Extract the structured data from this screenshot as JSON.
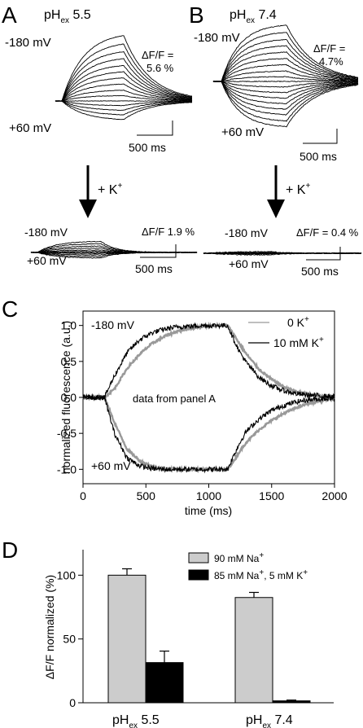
{
  "panel_A": {
    "label": "A",
    "title_main": "pH",
    "title_sub": "ex",
    "title_value": " 5.5",
    "v_top": "-180 mV",
    "v_bottom": "+60 mV",
    "df_line1": "ΔF/F =",
    "df_line2": "5.6 %",
    "scale_label": "500 ms",
    "arrow_label_main": "+ K",
    "arrow_label_sup": "+",
    "k_v_top": "-180 mV",
    "k_v_bottom": "+60 mV",
    "k_df": "ΔF/F 1.9 %",
    "k_scale_label": "500 ms"
  },
  "panel_B": {
    "label": "B",
    "title_main": "pH",
    "title_sub": "ex",
    "title_value": " 7.4",
    "v_top": "-180 mV",
    "v_bottom": "+60 mV",
    "df_line1": "ΔF/F =",
    "df_line2": "4.7%",
    "scale_label": "500 ms",
    "arrow_label_main": "+ K",
    "arrow_label_sup": "+",
    "k_v_top": "-180 mV",
    "k_v_bottom": "+60 mV",
    "k_df": "ΔF/F = 0.4 %",
    "k_scale_label": "500 ms"
  },
  "panel_C_label": "C",
  "panel_D_label": "D",
  "chart_data": [
    {
      "panel": "C",
      "type": "line",
      "title": "",
      "xlabel": "time (ms)",
      "ylabel": "normalized fluorescence (a.u.)",
      "xlim": [
        0,
        2000
      ],
      "ylim": [
        -1.2,
        1.2
      ],
      "xticks": [
        0,
        500,
        1000,
        1500,
        2000
      ],
      "xtick_labels": [
        "0",
        "500",
        "1000",
        "1500",
        "2000"
      ],
      "yticks": [
        -1.0,
        -0.5,
        0.0,
        0.5,
        1.0
      ],
      "ytick_labels": [
        "-1.0",
        "-0.5",
        "0.0",
        "0.5",
        "1.0"
      ],
      "annotations": [
        "-180 mV",
        "+60 mV",
        "data from panel A"
      ],
      "legend_position": "top-right",
      "series": [
        {
          "name": "0 K",
          "name_sup": "+",
          "color": "#999999",
          "x": [
            0,
            150,
            170,
            250,
            350,
            450,
            550,
            650,
            750,
            850,
            950,
            1050,
            1150,
            1200,
            1250,
            1300,
            1400,
            1500,
            1600,
            1700,
            1800,
            1900,
            2000
          ],
          "upper": [
            0.0,
            0.0,
            0.0,
            0.12,
            0.4,
            0.6,
            0.75,
            0.85,
            0.92,
            0.96,
            0.99,
            1.0,
            1.0,
            0.87,
            0.73,
            0.6,
            0.39,
            0.25,
            0.14,
            0.08,
            0.04,
            0.02,
            0.01
          ],
          "lower": [
            0.0,
            0.0,
            0.0,
            -0.35,
            -0.72,
            -0.88,
            -0.96,
            -0.99,
            -1.0,
            -1.0,
            -1.0,
            -1.0,
            -1.0,
            -0.88,
            -0.74,
            -0.62,
            -0.45,
            -0.32,
            -0.22,
            -0.14,
            -0.08,
            -0.04,
            -0.02
          ]
        },
        {
          "name": "10 mM K",
          "name_sup": "+",
          "color": "#000000",
          "x": [
            0,
            150,
            170,
            250,
            350,
            450,
            550,
            650,
            750,
            850,
            950,
            1050,
            1150,
            1200,
            1250,
            1300,
            1400,
            1500,
            1600,
            1700,
            1800,
            1900,
            2000
          ],
          "upper": [
            0.0,
            0.0,
            0.0,
            0.3,
            0.62,
            0.8,
            0.9,
            0.95,
            0.98,
            0.99,
            1.0,
            1.0,
            1.0,
            0.8,
            0.62,
            0.48,
            0.28,
            0.16,
            0.09,
            0.05,
            0.03,
            0.02,
            0.01
          ],
          "lower": [
            0.0,
            0.0,
            0.0,
            -0.5,
            -0.84,
            -0.95,
            -0.99,
            -1.0,
            -1.0,
            -1.0,
            -1.0,
            -1.0,
            -1.0,
            -0.8,
            -0.62,
            -0.47,
            -0.3,
            -0.18,
            -0.11,
            -0.06,
            -0.03,
            -0.02,
            -0.01
          ]
        }
      ]
    },
    {
      "panel": "D",
      "type": "bar",
      "title": "",
      "xlabel": "",
      "ylabel": "ΔF/F normalized (%)",
      "ylim": [
        0,
        120
      ],
      "yticks": [
        0,
        50,
        100
      ],
      "ytick_labels": [
        "0",
        "50",
        "100"
      ],
      "categories": [
        {
          "main": "pH",
          "sub": "ex",
          "value": " 5.5"
        },
        {
          "main": "pH",
          "sub": "ex",
          "value": " 7.4"
        }
      ],
      "legend_position": "top-right",
      "series": [
        {
          "name": "90 mM Na",
          "name_sup": "+",
          "color": "#cccccc",
          "values": [
            100,
            82.5
          ],
          "errors": [
            5,
            4
          ]
        },
        {
          "name": "85 mM Na",
          "name_sup": "+",
          "name_rest": ", 5 mM K",
          "name_rest_sup": "+",
          "color": "#000000",
          "values": [
            31.5,
            1.5
          ],
          "errors": [
            9,
            0.6
          ]
        }
      ]
    }
  ]
}
